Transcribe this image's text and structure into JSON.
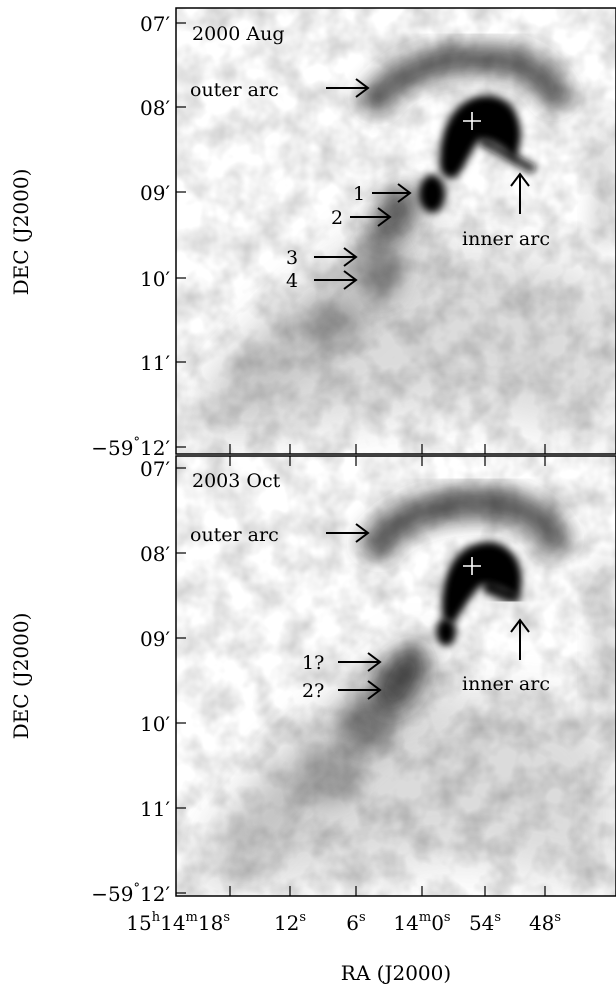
{
  "figure": {
    "ylabel": "DEC (J2000)",
    "xlabel": "RA (J2000)",
    "ra_ticks": [
      {
        "h": "15",
        "m": "14",
        "s": "18",
        "label": "15h14m18s"
      },
      {
        "s": "12",
        "label": "12s"
      },
      {
        "s": "6",
        "label": "6s"
      },
      {
        "m": "14",
        "s": "0",
        "label": "14m0s"
      },
      {
        "s": "54",
        "label": "54s"
      },
      {
        "s": "48",
        "label": "48s"
      }
    ],
    "dec_ticks": [
      {
        "min": "07",
        "label": "07′"
      },
      {
        "min": "08",
        "label": "08′"
      },
      {
        "min": "09",
        "label": "09′"
      },
      {
        "min": "10",
        "label": "10′"
      },
      {
        "min": "11",
        "label": "11′"
      },
      {
        "deg": "-59",
        "min": "12",
        "label": "−59°12′"
      }
    ]
  },
  "panels": [
    {
      "epoch": "2000 Aug",
      "labels": {
        "outer_arc": "outer arc",
        "inner_arc": "inner arc",
        "knots": [
          "1",
          "2",
          "3",
          "4"
        ]
      }
    },
    {
      "epoch": "2003 Oct",
      "labels": {
        "outer_arc": "outer arc",
        "inner_arc": "inner arc",
        "knots": [
          "1?",
          "2?"
        ]
      }
    }
  ],
  "colors": {
    "emission": "#000000",
    "background": "#ffffff",
    "pulsar_marker": "#ffffff"
  }
}
